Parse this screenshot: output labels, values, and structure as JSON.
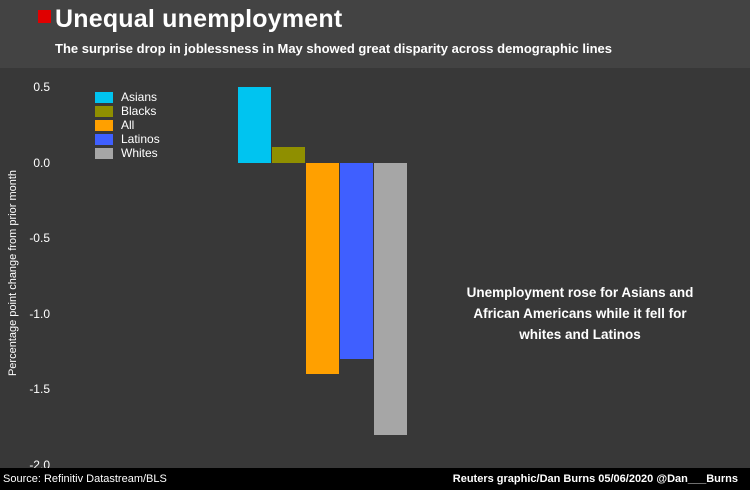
{
  "header": {
    "title": "Unequal unemployment",
    "subtitle": "The surprise drop in joblessness in May showed great disparity across demographic lines",
    "accent_color": "#e00000"
  },
  "chart_data": {
    "type": "bar",
    "title": "Unequal unemployment",
    "ylabel": "Percentage point change from prior month",
    "ylim": [
      -2.0,
      0.5
    ],
    "yticks": [
      0.5,
      0.0,
      -0.5,
      -1.0,
      -1.5,
      -2.0
    ],
    "categories": [
      "Asians",
      "Blacks",
      "All",
      "Latinos",
      "Whites"
    ],
    "values": [
      0.5,
      0.1,
      -1.4,
      -1.3,
      -1.8
    ],
    "colors": [
      "#00c4f0",
      "#8f8f00",
      "#ffa000",
      "#3f5fff",
      "#a6a6a6"
    ],
    "grid": false,
    "legend_position": "top-left"
  },
  "annotation": {
    "text": "Unemployment rose for Asians and\nAfrican Americans while it fell for\nwhites and Latinos"
  },
  "footer": {
    "source": "Source: Refinitiv Datastream/BLS",
    "credit": "Reuters graphic/Dan Burns 05/06/2020 @Dan___Burns"
  }
}
